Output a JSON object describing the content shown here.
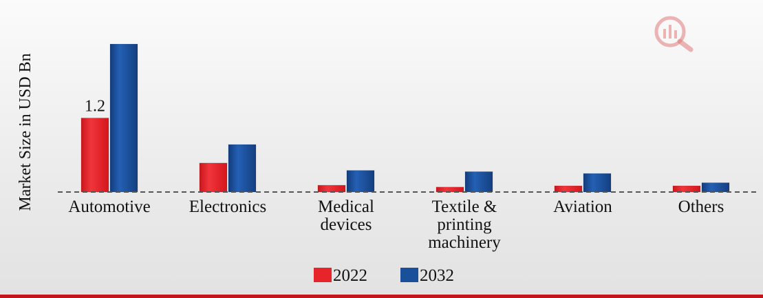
{
  "chart_data": {
    "type": "bar",
    "ylabel": "Market Size in USD Bn",
    "categories": [
      [
        "Automotive"
      ],
      [
        "Electronics"
      ],
      [
        "Medical",
        "devices"
      ],
      [
        "Textile &",
        "printing",
        "machinery"
      ],
      [
        "Aviation"
      ],
      [
        "Others"
      ]
    ],
    "series": [
      {
        "name": "2022",
        "color": "#e8242b",
        "values": [
          1.2,
          0.47,
          0.11,
          0.08,
          0.1,
          0.1
        ]
      },
      {
        "name": "2032",
        "color": "#1a4f9c",
        "values": [
          2.4,
          0.77,
          0.35,
          0.33,
          0.3,
          0.15
        ]
      }
    ],
    "data_labels": [
      {
        "series": 0,
        "category": 0,
        "text": "1.2"
      }
    ],
    "ylim": [
      0,
      2.5
    ],
    "grid": false,
    "axis_line": "dashed",
    "legend": "bottom-center"
  },
  "logo": {
    "name": "brand-logo-icon",
    "color": "#d93a3a"
  }
}
